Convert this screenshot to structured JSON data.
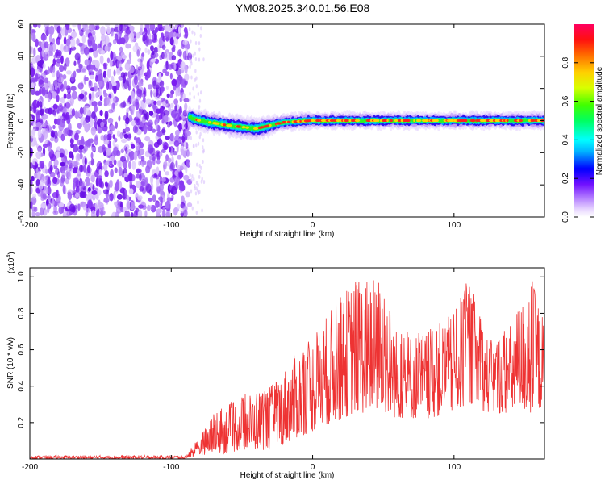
{
  "title": "YM08.2025.340.01.56.E08",
  "chart_data": [
    {
      "type": "heatmap",
      "xlabel": "Height of straight line (km)",
      "ylabel": "Frequency (Hz)",
      "xlim": [
        -200,
        164
      ],
      "ylim": [
        -60,
        60
      ],
      "x_ticks": [
        -200,
        -100,
        0,
        100
      ],
      "y_ticks": [
        -60,
        -40,
        -20,
        0,
        20,
        40,
        60
      ],
      "noise_region_x": [
        -200,
        -87
      ],
      "signal_band": {
        "x_start": -87,
        "x_end": 164,
        "center_frequency": [
          {
            "x": -87,
            "y": 2
          },
          {
            "x": -80,
            "y": 0
          },
          {
            "x": -60,
            "y": -3
          },
          {
            "x": -40,
            "y": -5
          },
          {
            "x": -20,
            "y": -1
          },
          {
            "x": 0,
            "y": 0
          },
          {
            "x": 50,
            "y": 0
          },
          {
            "x": 100,
            "y": 0
          },
          {
            "x": 164,
            "y": 0
          }
        ]
      },
      "colorbar": {
        "label": "Normalized spectral amplitude",
        "range": [
          0,
          1
        ],
        "ticks": [
          "0.0",
          "0.2",
          "0.4",
          "0.6",
          "0.8"
        ]
      }
    },
    {
      "type": "line",
      "xlabel": "Height of straight line (km)",
      "ylabel": "SNR (10 * v/v)",
      "y_multiplier": "(x10^4)",
      "xlim": [
        -200,
        164
      ],
      "ylim": [
        0,
        1.05
      ],
      "x_ticks": [
        -200,
        -100,
        0,
        100
      ],
      "y_ticks": [
        "0.2",
        "0.4",
        "0.6",
        "0.8",
        "1.0"
      ],
      "color": "#ee3333",
      "series": [
        {
          "envelope": [
            {
              "x": -200,
              "low": 0.0,
              "high": 0.02
            },
            {
              "x": -90,
              "low": 0.0,
              "high": 0.02
            },
            {
              "x": -80,
              "low": 0.02,
              "high": 0.12
            },
            {
              "x": -70,
              "low": 0.03,
              "high": 0.25
            },
            {
              "x": -60,
              "low": 0.03,
              "high": 0.3
            },
            {
              "x": -50,
              "low": 0.05,
              "high": 0.35
            },
            {
              "x": -40,
              "low": 0.05,
              "high": 0.38
            },
            {
              "x": -30,
              "low": 0.05,
              "high": 0.4
            },
            {
              "x": -20,
              "low": 0.08,
              "high": 0.5
            },
            {
              "x": -10,
              "low": 0.12,
              "high": 0.6
            },
            {
              "x": 0,
              "low": 0.15,
              "high": 0.68
            },
            {
              "x": 15,
              "low": 0.2,
              "high": 0.85
            },
            {
              "x": 30,
              "low": 0.25,
              "high": 1.0
            },
            {
              "x": 50,
              "low": 0.25,
              "high": 1.0
            },
            {
              "x": 60,
              "low": 0.22,
              "high": 0.7
            },
            {
              "x": 80,
              "low": 0.22,
              "high": 0.7
            },
            {
              "x": 100,
              "low": 0.25,
              "high": 0.8
            },
            {
              "x": 110,
              "low": 0.3,
              "high": 1.0
            },
            {
              "x": 125,
              "low": 0.25,
              "high": 0.65
            },
            {
              "x": 140,
              "low": 0.25,
              "high": 0.75
            },
            {
              "x": 155,
              "low": 0.22,
              "high": 1.0
            },
            {
              "x": 164,
              "low": 0.3,
              "high": 0.75
            }
          ]
        }
      ]
    }
  ]
}
